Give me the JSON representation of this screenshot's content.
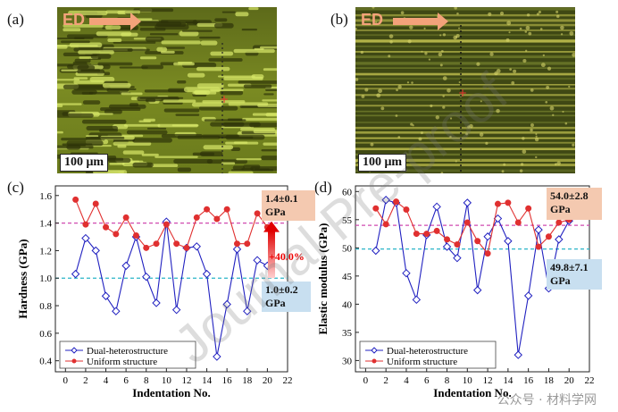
{
  "panels": {
    "a": "(a)",
    "b": "(b)",
    "c": "(c)",
    "d": "(d)"
  },
  "micrographs": {
    "ed_label": "ED",
    "scale_bar": "100 μm"
  },
  "watermark": "Journal Pre-proof",
  "wm_logo": "公众号 · 材料学网",
  "chart_data": [
    {
      "type": "line",
      "id": "hardness",
      "xlabel": "Indentation No.",
      "ylabel": "Hardness (GPa)",
      "xlim": [
        -1,
        22
      ],
      "ylim": [
        0.32,
        1.67
      ],
      "xticks": [
        0,
        2,
        4,
        6,
        8,
        10,
        12,
        14,
        16,
        18,
        20,
        22
      ],
      "yticks": [
        0.4,
        0.6,
        0.8,
        1.0,
        1.2,
        1.4,
        1.6
      ],
      "ytick_labels": [
        "0.4",
        "0.6",
        "0.8",
        "1.0",
        "1.2",
        "1.4",
        "1.6"
      ],
      "series": [
        {
          "name": "Dual-heterostructure",
          "color": "#2020c0",
          "marker": "diamond",
          "x": [
            1,
            2,
            3,
            4,
            5,
            6,
            7,
            8,
            9,
            10,
            11,
            12,
            13,
            14,
            15,
            16,
            17,
            18,
            19,
            20
          ],
          "values": [
            1.03,
            1.29,
            1.2,
            0.87,
            0.76,
            1.09,
            1.3,
            1.01,
            0.82,
            1.41,
            0.77,
            1.22,
            1.23,
            1.03,
            0.43,
            0.81,
            1.21,
            0.76,
            1.13,
            1.09
          ]
        },
        {
          "name": "Uniform structure",
          "color": "#e03030",
          "marker": "circle",
          "x": [
            1,
            2,
            3,
            4,
            5,
            6,
            7,
            8,
            9,
            10,
            11,
            12,
            13,
            14,
            15,
            16,
            17,
            18,
            19,
            20
          ],
          "values": [
            1.57,
            1.39,
            1.54,
            1.37,
            1.32,
            1.44,
            1.31,
            1.22,
            1.25,
            1.39,
            1.25,
            1.22,
            1.44,
            1.5,
            1.43,
            1.5,
            1.25,
            1.25,
            1.47,
            1.37
          ]
        }
      ],
      "hlines": [
        {
          "y": 1.4,
          "color": "#d04ab0"
        },
        {
          "y": 1.0,
          "color": "#2ab5c8"
        }
      ],
      "annotations": [
        {
          "text": "1.4±0.1",
          "text2": "GPa",
          "color": "#f4c9b0"
        },
        {
          "text": "1.0±0.2",
          "text2": "GPa",
          "color": "#c8dff0"
        },
        {
          "text": "+40.0%"
        }
      ]
    },
    {
      "type": "line",
      "id": "modulus",
      "xlabel": "Indentation No.",
      "ylabel": "Elastic modulus (GPa)",
      "xlim": [
        -1,
        22
      ],
      "ylim": [
        28,
        61
      ],
      "xticks": [
        0,
        2,
        4,
        6,
        8,
        10,
        12,
        14,
        16,
        18,
        20,
        22
      ],
      "yticks": [
        30,
        35,
        40,
        45,
        50,
        55,
        60
      ],
      "ytick_labels": [
        "30",
        "35",
        "40",
        "45",
        "50",
        "55",
        "60"
      ],
      "series": [
        {
          "name": "Dual-heterostructure",
          "color": "#2020c0",
          "marker": "diamond",
          "x": [
            1,
            2,
            3,
            4,
            5,
            6,
            7,
            8,
            9,
            10,
            11,
            12,
            13,
            14,
            15,
            16,
            17,
            18,
            19,
            20
          ],
          "values": [
            49.5,
            58.5,
            58.0,
            45.5,
            40.8,
            52.3,
            57.3,
            50.2,
            48.2,
            58.0,
            42.5,
            52.0,
            55.2,
            51.2,
            31.0,
            41.5,
            53.2,
            42.8,
            51.5,
            54.8
          ]
        },
        {
          "name": "Uniform structure",
          "color": "#e03030",
          "marker": "circle",
          "x": [
            1,
            2,
            3,
            4,
            5,
            6,
            7,
            8,
            9,
            10,
            11,
            12,
            13,
            14,
            15,
            16,
            17,
            18,
            19,
            20
          ],
          "values": [
            57.0,
            54.2,
            58.2,
            56.8,
            52.5,
            52.5,
            53.0,
            51.5,
            50.6,
            54.5,
            51.2,
            49.0,
            57.8,
            58.0,
            54.5,
            57.0,
            50.2,
            52.0,
            54.5,
            55.0
          ]
        }
      ],
      "hlines": [
        {
          "y": 54.0,
          "color": "#d04ab0"
        },
        {
          "y": 49.8,
          "color": "#2ab5c8"
        }
      ],
      "annotations": [
        {
          "text": "54.0±2.8",
          "text2": "GPa",
          "color": "#f4c9b0"
        },
        {
          "text": "49.8±7.1",
          "text2": "GPa",
          "color": "#c8dff0"
        }
      ]
    }
  ]
}
